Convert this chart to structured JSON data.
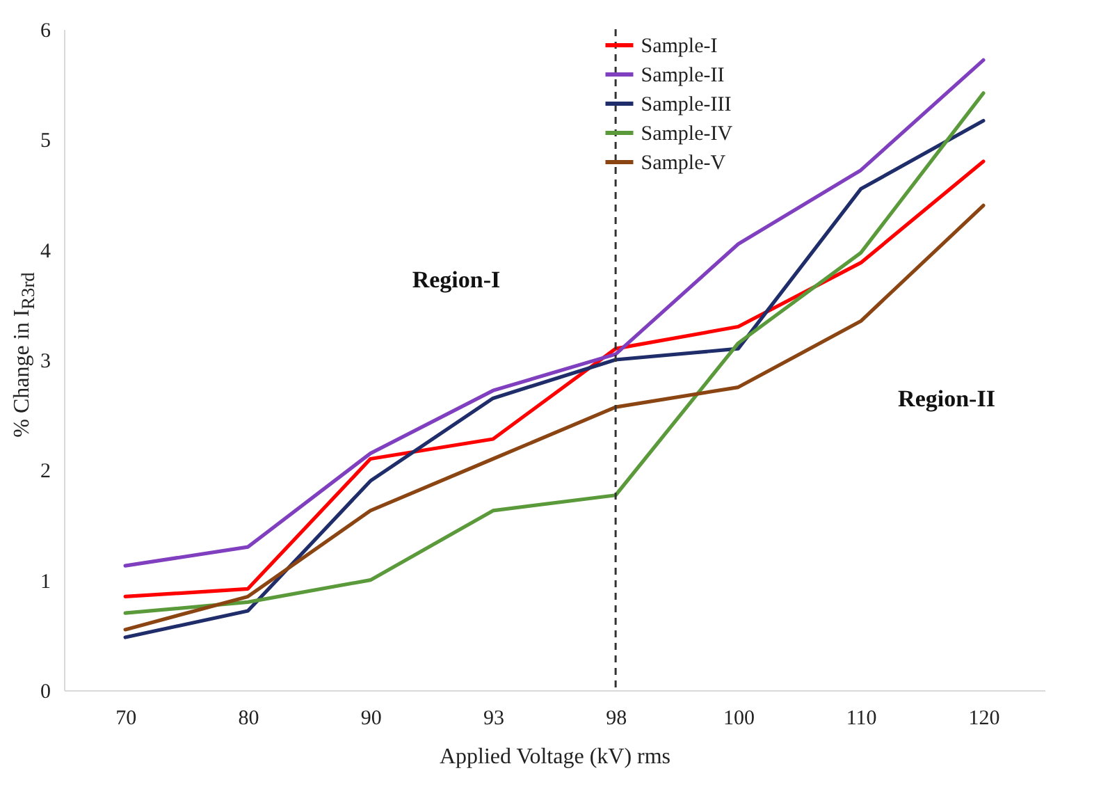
{
  "chart_data": {
    "type": "line",
    "xlabel": "Applied Voltage (kV) rms",
    "ylabel": "% Change in I$_{R3rd}$",
    "categories": [
      "70",
      "80",
      "90",
      "93",
      "98",
      "100",
      "110",
      "120"
    ],
    "series": [
      {
        "name": "Sample-I",
        "color": "#ff0000",
        "values": [
          0.85,
          0.92,
          2.1,
          2.28,
          3.1,
          3.3,
          3.88,
          4.8
        ]
      },
      {
        "name": "Sample-II",
        "color": "#7f3fbf",
        "values": [
          1.13,
          1.3,
          2.15,
          2.72,
          3.05,
          4.05,
          4.72,
          5.72
        ]
      },
      {
        "name": "Sample-III",
        "color": "#1f2d6b",
        "values": [
          0.48,
          0.72,
          1.9,
          2.65,
          3.0,
          3.1,
          4.55,
          5.17
        ]
      },
      {
        "name": "Sample-IV",
        "color": "#5a9a3a",
        "values": [
          0.7,
          0.8,
          1.0,
          1.63,
          1.77,
          3.15,
          3.97,
          5.42
        ]
      },
      {
        "name": "Sample-V",
        "color": "#8b4513",
        "values": [
          0.55,
          0.85,
          1.63,
          2.1,
          2.57,
          2.75,
          3.35,
          4.4
        ]
      }
    ],
    "ylim": [
      0,
      6
    ],
    "yticks": [
      0,
      1,
      2,
      3,
      4,
      5,
      6
    ],
    "grid": false,
    "legend": "top right",
    "line_style": "solid",
    "marker": "none",
    "ref_lines": [
      {
        "axis": "x",
        "value": "98",
        "color": "#333333",
        "line_style": "dashed"
      }
    ],
    "annotations": [
      "Region-I",
      "Region-II"
    ]
  }
}
